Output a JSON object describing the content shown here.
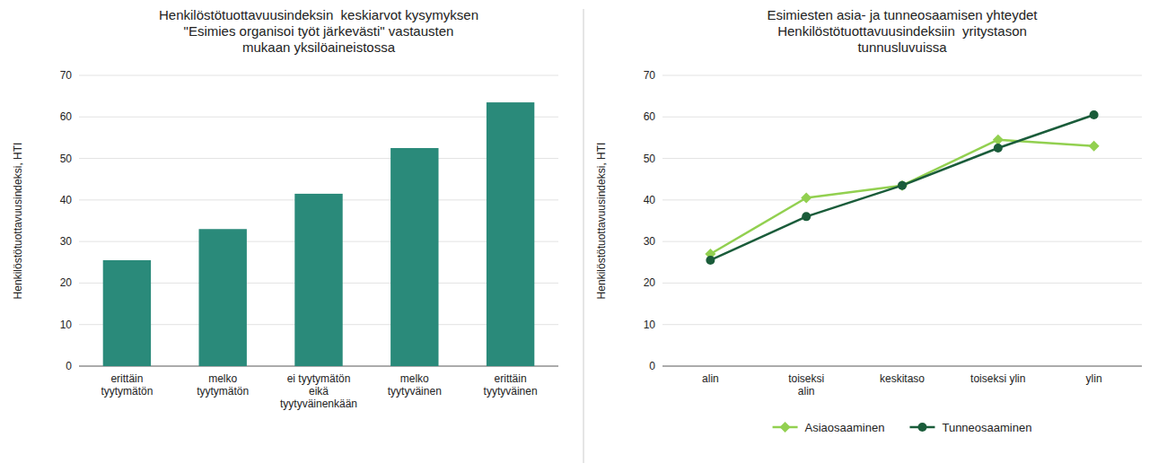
{
  "chart_data": [
    {
      "type": "bar",
      "title": "Henkilöstötuottavuusindeksin  keskiarvot kysymyksen\n\"Esimies organisoi työt järkevästi\" vastausten\nmukaan yksilöaineistossa",
      "ylabel": "Henkilöstötuottavuusindeksi, HTI",
      "categories": [
        "erittäin\ntyytymätön",
        "melko\ntyytymätön",
        "ei tyytymätön\neikä\ntyytyväinenkään",
        "melko\ntyytyväinen",
        "erittäin\ntyytyväinen"
      ],
      "values": [
        25.5,
        33.0,
        41.5,
        52.5,
        63.5
      ],
      "color": "#2a8a7a",
      "ylim": [
        0,
        70
      ],
      "yticks": [
        0,
        10,
        20,
        30,
        40,
        50,
        60,
        70
      ],
      "grid": true
    },
    {
      "type": "line",
      "title": "Esimiesten asia- ja tunneosaamisen yhteydet\nHenkilöstötuottavuusindeksiin  yritystason\ntunnusluvuissa",
      "ylabel": "Henkilöstötuottavuusindeksi, HTI",
      "categories": [
        "alin",
        "toiseksi\nalin",
        "keskitaso",
        "toiseksi ylin",
        "ylin"
      ],
      "series": [
        {
          "name": "Asiaosaaminen",
          "color": "#92d050",
          "marker": "diamond",
          "values": [
            27.0,
            40.5,
            43.5,
            54.5,
            53.0
          ]
        },
        {
          "name": "Tunneosaaminen",
          "color": "#1a5c3a",
          "marker": "circle",
          "values": [
            25.5,
            36.0,
            43.5,
            52.5,
            60.5
          ]
        }
      ],
      "ylim": [
        0,
        70
      ],
      "yticks": [
        0,
        10,
        20,
        30,
        40,
        50,
        60,
        70
      ],
      "grid": true,
      "legend": "bottom"
    }
  ]
}
